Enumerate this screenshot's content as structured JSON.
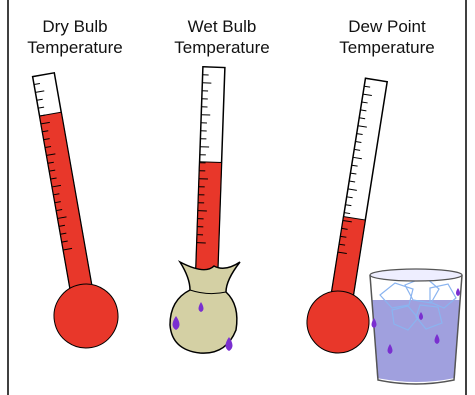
{
  "thermometers": [
    {
      "label": [
        "Dry Bulb",
        "Temperature"
      ]
    },
    {
      "label": [
        "Wet Bulb",
        "Temperature"
      ]
    },
    {
      "label": [
        "Dew Point",
        "Temperature"
      ]
    }
  ]
}
